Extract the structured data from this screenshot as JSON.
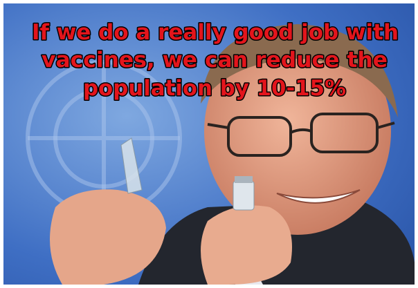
{
  "caption": {
    "lines": [
      "If we do a really good job with",
      "vaccines, we can reduce the",
      "population by 10-15%"
    ]
  }
}
